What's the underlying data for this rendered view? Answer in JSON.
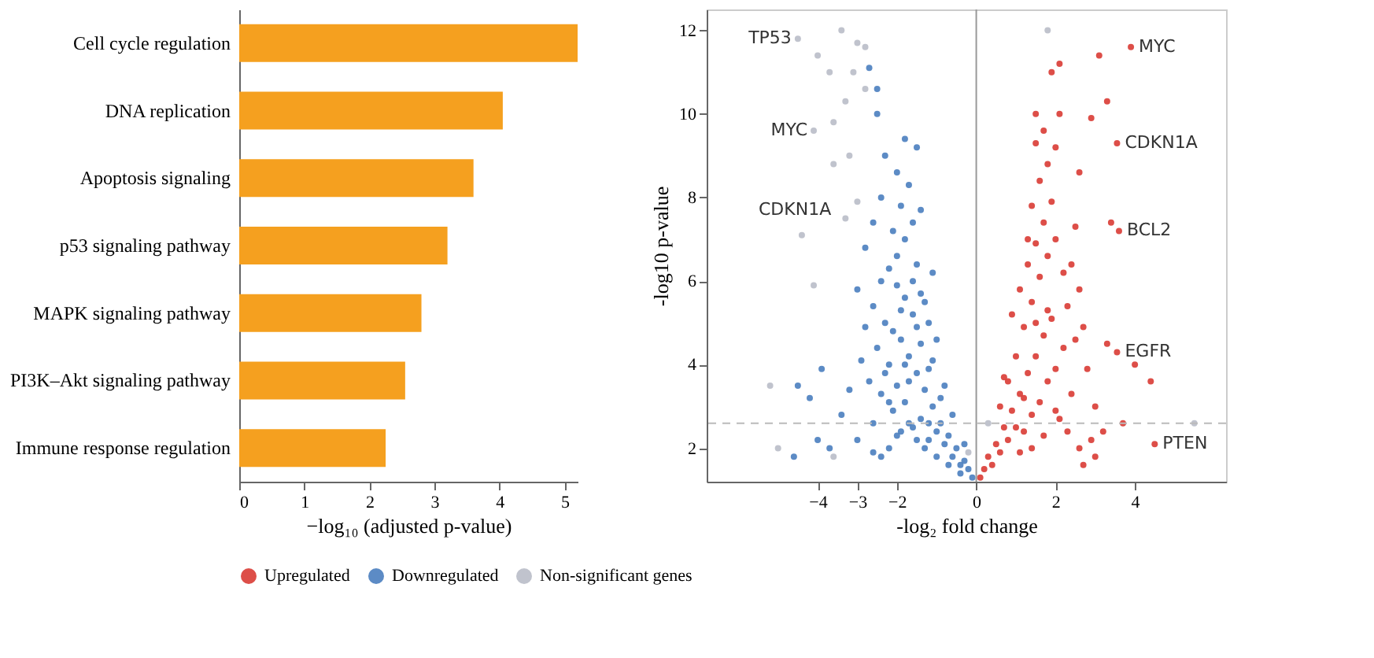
{
  "chart_data": [
    {
      "type": "bar",
      "orientation": "horizontal",
      "categories": [
        "Cell cycle regulation",
        "DNA replication",
        "Apoptosis signaling",
        "p53 signaling pathway",
        "MAPK signaling pathway",
        "PI3K–Akt signaling pathway",
        "Immune response regulation"
      ],
      "values": [
        5.2,
        4.05,
        3.6,
        3.2,
        2.8,
        2.55,
        2.25
      ],
      "color": "#f5a01f",
      "xlabel": "−log₁₀ (adjusted p-value)",
      "xlim": [
        0,
        5.2
      ],
      "xticks": [
        0,
        1,
        2,
        3,
        4,
        5
      ],
      "grid": false
    },
    {
      "type": "scatter",
      "xlabel": "-log₂ fold change",
      "ylabel": "-log10 p-value",
      "marker": "circle",
      "grid": false,
      "legend": "bottom",
      "xlim": [
        -6.8,
        6.3
      ],
      "ylim": [
        1.2,
        12.5
      ],
      "xticks": [
        -4,
        -3,
        -2,
        0,
        2,
        4
      ],
      "yticks": [
        2,
        4,
        6,
        8,
        10,
        12
      ],
      "series": [
        {
          "name": "Upregulated",
          "color": "#d93b34",
          "x": [
            0.1,
            0.2,
            0.3,
            0.4,
            0.5,
            0.6,
            0.7,
            0.8,
            0.9,
            1.0,
            1.1,
            1.2,
            1.3,
            1.4,
            1.5,
            1.6,
            1.7,
            1.8,
            1.9,
            2.0,
            2.1,
            2.2,
            2.3,
            2.4,
            2.5,
            0.6,
            0.8,
            1.0,
            1.2,
            1.4,
            1.6,
            1.8,
            2.0,
            0.9,
            1.1,
            1.3,
            1.5,
            1.7,
            1.9,
            1.4,
            1.6,
            1.8,
            2.0,
            1.5,
            1.7,
            2.1,
            1.5,
            1.9,
            2.1,
            2.6,
            2.7,
            2.8,
            3.0,
            2.9,
            2.6,
            3.2,
            2.4,
            2.5,
            2.6,
            3.3,
            3.1,
            2.9,
            3.4,
            1.2,
            1.4,
            1.7,
            2.0,
            2.3,
            1.1,
            0.7,
            1.5,
            1.8,
            2.2,
            1.3,
            3.9,
            3.55,
            3.6,
            3.55,
            4.5,
            4.0,
            4.4,
            3.7,
            3.3,
            3.0,
            2.7
          ],
          "values": [
            1.3,
            1.5,
            1.8,
            1.6,
            2.1,
            1.9,
            2.5,
            2.2,
            2.9,
            2.5,
            3.3,
            2.4,
            3.8,
            2.8,
            4.2,
            3.1,
            4.7,
            3.6,
            5.1,
            3.9,
            2.7,
            4.4,
            5.4,
            3.3,
            4.6,
            3.0,
            3.6,
            4.2,
            4.9,
            5.5,
            6.1,
            6.6,
            7.0,
            5.2,
            5.8,
            6.4,
            6.9,
            7.4,
            7.9,
            7.8,
            8.4,
            8.8,
            9.2,
            9.3,
            9.6,
            10.0,
            10.0,
            11.0,
            11.2,
            5.8,
            4.9,
            3.9,
            3.0,
            2.2,
            2.0,
            2.4,
            6.4,
            7.3,
            8.6,
            10.3,
            11.4,
            9.9,
            7.4,
            3.2,
            2.0,
            2.3,
            2.9,
            2.4,
            1.9,
            3.7,
            5.0,
            5.3,
            6.2,
            7.0,
            11.6,
            9.3,
            7.2,
            4.3,
            2.1,
            4.0,
            3.6,
            2.6,
            4.5,
            1.8,
            1.6
          ]
        },
        {
          "name": "Downregulated",
          "color": "#4a7ebf",
          "x": [
            -0.1,
            -0.2,
            -0.3,
            -0.4,
            -0.5,
            -0.6,
            -0.7,
            -0.8,
            -0.9,
            -1.0,
            -1.1,
            -1.2,
            -1.3,
            -1.4,
            -1.5,
            -1.6,
            -1.7,
            -1.8,
            -1.9,
            -2.0,
            -2.1,
            -2.2,
            -2.3,
            -2.4,
            -2.5,
            -1.0,
            -1.2,
            -1.4,
            -1.6,
            -1.8,
            -2.0,
            -1.3,
            -0.9,
            -1.1,
            -1.5,
            -1.7,
            -1.9,
            -2.2,
            -2.4,
            -2.6,
            -2.7,
            -2.3,
            -2.1,
            -1.9,
            -1.6,
            -1.4,
            -1.2,
            -2.2,
            -2.0,
            -1.8,
            -1.5,
            -1.6,
            -1.9,
            -2.1,
            -1.4,
            -1.7,
            -2.0,
            -1.5,
            -1.8,
            -2.3,
            -2.5,
            -2.5,
            -2.7,
            -2.4,
            -2.6,
            -2.8,
            -3.0,
            -2.8,
            -2.9,
            -3.2,
            -3.4,
            -3.0,
            -3.7,
            -2.6,
            -0.6,
            -0.8,
            -1.0,
            -1.3,
            -1.1,
            -2.6,
            -2.4,
            -1.2,
            -0.7,
            -0.4,
            -0.3,
            -1.5,
            -1.7,
            -2.0,
            -2.2,
            -1.8,
            -4.5,
            -4.2,
            -3.9,
            -4.0,
            -4.6
          ],
          "values": [
            1.3,
            1.5,
            1.7,
            1.6,
            2.0,
            1.8,
            2.3,
            2.1,
            2.6,
            2.4,
            3.0,
            2.2,
            3.4,
            2.7,
            3.8,
            2.5,
            4.2,
            3.1,
            4.6,
            3.5,
            2.9,
            4.0,
            5.0,
            3.3,
            4.4,
            1.8,
            3.9,
            4.5,
            5.2,
            5.6,
            5.9,
            2.0,
            3.2,
            4.1,
            4.9,
            3.6,
            2.4,
            2.0,
            1.8,
            2.6,
            3.6,
            3.8,
            4.8,
            5.3,
            6.0,
            5.7,
            5.0,
            6.3,
            6.6,
            7.0,
            6.4,
            7.4,
            7.8,
            7.2,
            7.7,
            8.3,
            8.6,
            9.2,
            9.4,
            9.0,
            10.0,
            10.6,
            11.1,
            8.0,
            7.4,
            6.8,
            5.8,
            4.9,
            4.1,
            3.4,
            2.8,
            2.2,
            2.0,
            1.9,
            2.8,
            3.5,
            4.6,
            5.5,
            6.2,
            5.4,
            6.0,
            2.6,
            1.6,
            1.4,
            2.1,
            2.2,
            2.6,
            2.3,
            3.1,
            4.0,
            3.5,
            3.2,
            3.9,
            2.2,
            1.8
          ]
        },
        {
          "name": "Non-significant genes",
          "color": "#b9bcc8",
          "x": [
            -4.0,
            -3.4,
            -3.0,
            -2.8,
            -3.7,
            -3.1,
            -3.3,
            -2.8,
            -3.6,
            -3.2,
            -3.6,
            -3.3,
            -4.4,
            -3.0,
            -4.1,
            1.8,
            -0.2,
            0.3,
            -3.6,
            -5.0,
            -5.2,
            5.5,
            -4.5,
            -4.1
          ],
          "values": [
            11.4,
            12.0,
            11.7,
            11.6,
            11.0,
            11.0,
            10.3,
            10.6,
            9.8,
            9.0,
            8.8,
            7.5,
            7.1,
            7.9,
            5.9,
            12.0,
            1.9,
            2.6,
            1.8,
            2.0,
            3.5,
            2.6,
            11.8,
            9.6
          ]
        }
      ],
      "ref_lines": [
        {
          "axis": "x",
          "value": 0,
          "color": "#999999",
          "line_style": "solid"
        },
        {
          "axis": "y",
          "value": 2.6,
          "color": "#bbbbbb",
          "line_style": "dashed"
        }
      ],
      "annotations": [
        {
          "text": "TP53",
          "x": -4.5,
          "y": 11.8
        },
        {
          "text": "MYC",
          "x": -4.1,
          "y": 9.6
        },
        {
          "text": "CDKN1A",
          "x": -3.5,
          "y": 7.7
        },
        {
          "text": "MYC",
          "x": 3.9,
          "y": 11.6
        },
        {
          "text": "CDKN1A",
          "x": 3.55,
          "y": 9.3
        },
        {
          "text": "BCL2",
          "x": 3.6,
          "y": 7.2
        },
        {
          "text": "EGFR",
          "x": 3.55,
          "y": 4.3
        },
        {
          "text": "PTEN",
          "x": 4.5,
          "y": 2.1
        }
      ]
    }
  ]
}
